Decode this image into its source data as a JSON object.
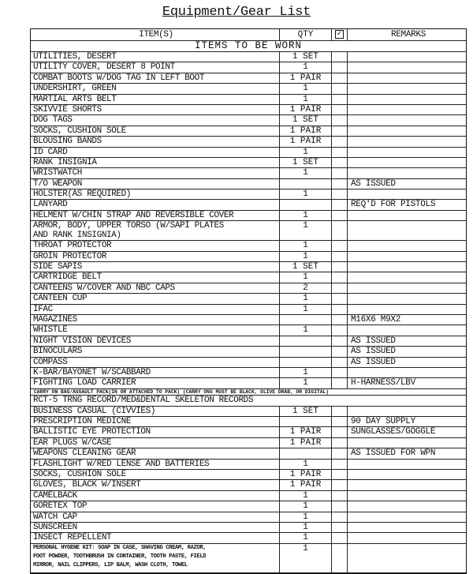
{
  "title": "Equipment/Gear List",
  "header": {
    "item": "ITEM(S)",
    "qty": "QTY",
    "check_icon": "checked-box-icon",
    "remarks": "REMARKS"
  },
  "section_worn": "ITEMS TO BE WORN",
  "worn_items": [
    {
      "item": "UTILITIES, DESERT",
      "qty": "1 SET",
      "remarks": ""
    },
    {
      "item": "UTILITY COVER, DESERT 8 POINT",
      "qty": "1",
      "remarks": ""
    },
    {
      "item": "COMBAT BOOTS W/DOG TAG IN LEFT BOOT",
      "qty": "1 PAIR",
      "remarks": ""
    },
    {
      "item": "UNDERSHIRT, GREEN",
      "qty": "1",
      "remarks": ""
    },
    {
      "item": "MARTIAL ARTS BELT",
      "qty": "1",
      "remarks": ""
    },
    {
      "item": "SKIVVIE SHORTS",
      "qty": "1 PAIR",
      "remarks": ""
    },
    {
      "item": "DOG TAGS",
      "qty": "1 SET",
      "remarks": ""
    },
    {
      "item": "SOCKS, CUSHION SOLE",
      "qty": "1 PAIR",
      "remarks": ""
    },
    {
      "item": "BLOUSING BANDS",
      "qty": "1 PAIR",
      "remarks": ""
    },
    {
      "item": "ID CARD",
      "qty": "1",
      "remarks": ""
    },
    {
      "item": "RANK INSIGNIA",
      "qty": "1 SET",
      "remarks": ""
    },
    {
      "item": "WRISTWATCH",
      "qty": "1",
      "remarks": ""
    },
    {
      "item": "T/O WEAPON",
      "qty": "",
      "remarks": "AS ISSUED"
    },
    {
      "item": "HOLSTER(AS REQUIRED)",
      "qty": "1",
      "remarks": ""
    },
    {
      "item": "LANYARD",
      "qty": "",
      "remarks": "REQ'D FOR PISTOLS"
    },
    {
      "item": "HELMENT W/CHIN STRAP AND REVERSIBLE COVER",
      "qty": "1",
      "remarks": ""
    },
    {
      "item": "ARMOR, BODY, UPPER TORSO (W/SAPI PLATES\nAND RANK INSIGNIA)",
      "qty": "1",
      "remarks": "",
      "lines": 2
    },
    {
      "item": "THROAT PROTECTOR",
      "qty": "1",
      "remarks": ""
    },
    {
      "item": "GROIN PROTECTOR",
      "qty": "1",
      "remarks": ""
    },
    {
      "item": "SIDE SAPIS",
      "qty": "1 SET",
      "remarks": ""
    },
    {
      "item": "CARTRIDGE BELT",
      "qty": "1",
      "remarks": ""
    },
    {
      "item": "CANTEENS W/COVER AND NBC CAPS",
      "qty": "2",
      "remarks": ""
    },
    {
      "item": "CANTEEN CUP",
      "qty": "1",
      "remarks": ""
    },
    {
      "item": "IFAC",
      "qty": "1",
      "remarks": ""
    },
    {
      "item": "MAGAZINES",
      "qty": "",
      "remarks": "M16X6  M9X2"
    },
    {
      "item": "WHISTLE",
      "qty": "1",
      "remarks": ""
    },
    {
      "item": "NIGHT VISION DEVICES",
      "qty": "",
      "remarks": "AS ISSUED"
    },
    {
      "item": "BINOCULARS",
      "qty": "",
      "remarks": "AS ISSUED"
    },
    {
      "item": "COMPASS",
      "qty": "",
      "remarks": "AS ISSUED"
    },
    {
      "item": "K-BAR/BAYONET W/SCABBARD",
      "qty": "1",
      "remarks": ""
    },
    {
      "item": "FIGHTING LOAD CARRIER",
      "qty": "1",
      "remarks": "H-HARNESS/LBV"
    }
  ],
  "section_carry_on": "CARRY ON BAG/ASSAULT PACK(IN OR ATTACHED TO PACK) (CARRY ONS MUST BE BLACK, OLIVE DRAB, OR DIGITAL)",
  "records_row": "RCT-5 TRNG RECORD/MED&DENTAL SKELETON RECORDS",
  "carry_items": [
    {
      "item": "BUSINESS CASUAL (CIVVIES)",
      "qty": "1 SET",
      "remarks": ""
    },
    {
      "item": "PRESCRIPTION MEDICNE",
      "qty": "",
      "remarks": "90 DAY SUPPLY"
    },
    {
      "item": "BALLISTIC EYE PROTECTION",
      "qty": "1 PAIR",
      "remarks": "SUNGLASSES/GOGGLE"
    },
    {
      "item": "EAR PLUGS W/CASE",
      "qty": "1 PAIR",
      "remarks": ""
    },
    {
      "item": "WEAPONS CLEANING GEAR",
      "qty": "",
      "remarks": "AS ISSUED FOR WPN"
    },
    {
      "item": "FLASHLIGHT W/RED LENSE AND BATTERIES",
      "qty": "1",
      "remarks": ""
    },
    {
      "item": "SOCKS, CUSHION SOLE",
      "qty": "1 PAIR",
      "remarks": ""
    },
    {
      "item": "GLOVES, BLACK W/INSERT",
      "qty": "1 PAIR",
      "remarks": ""
    },
    {
      "item": "CAMELBACK",
      "qty": "1",
      "remarks": ""
    },
    {
      "item": "GORETEX TOP",
      "qty": "1",
      "remarks": ""
    },
    {
      "item": "WATCH CAP",
      "qty": "1",
      "remarks": ""
    },
    {
      "item": "SUNSCREEN",
      "qty": "1",
      "remarks": ""
    },
    {
      "item": "INSECT REPELLENT",
      "qty": "1",
      "remarks": ""
    },
    {
      "item": "PERSONAL HYGENE KIT: SOAP IN CASE, SHAVING CREAM, RAZOR,\nFOOT POWDER, TOOTHBRUSH IN CONTAINER, TOOTH PASTE, FIELD\nMIRROR, NAIL CLIPPERS, LIP BALM, WASH CLOTH, TOWEL",
      "qty": "1",
      "remarks": "",
      "lines": 3
    }
  ]
}
